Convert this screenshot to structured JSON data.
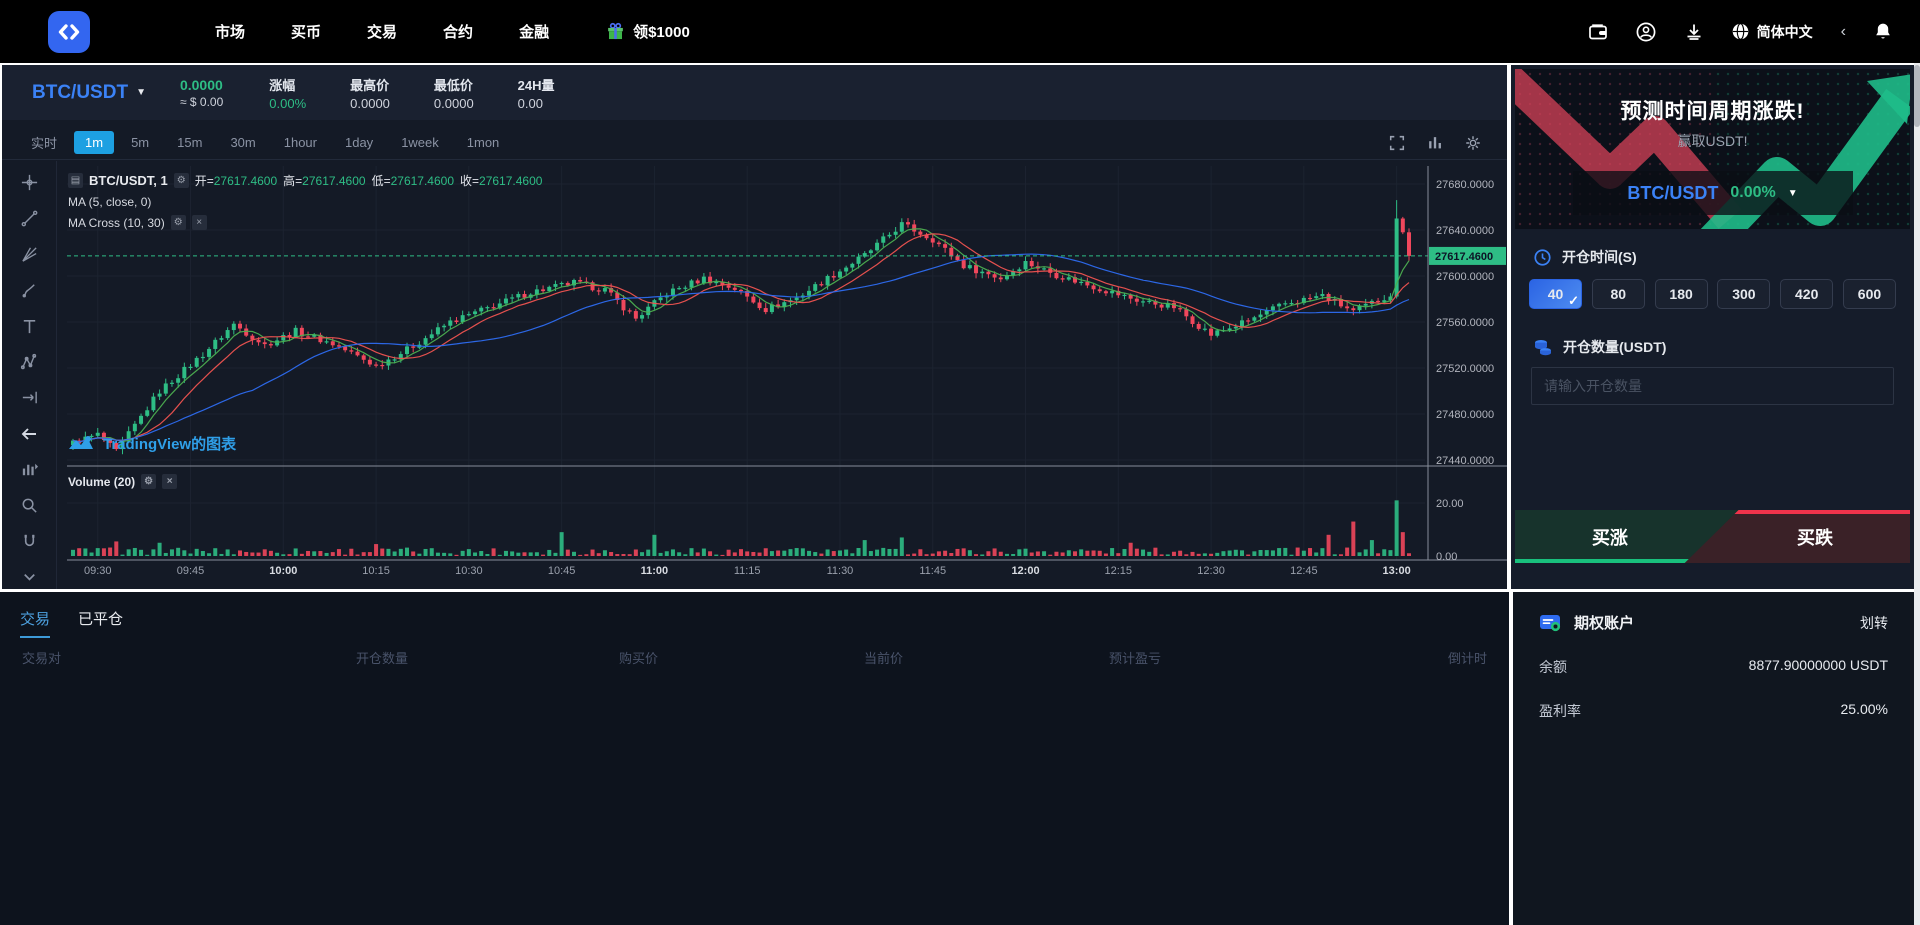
{
  "nav": {
    "links": [
      {
        "label": "市场"
      },
      {
        "label": "买币"
      },
      {
        "label": "交易"
      },
      {
        "label": "合约"
      },
      {
        "label": "金融"
      }
    ],
    "bonus_label": "领$1000",
    "language": "简体中文"
  },
  "chart_header": {
    "pair": "BTC/USDT",
    "price": "0.0000",
    "price_approx": "≈ $ 0.00",
    "stats": [
      {
        "label": "涨幅",
        "value": "0.00%"
      },
      {
        "label": "最高价",
        "value": "0.0000"
      },
      {
        "label": "最低价",
        "value": "0.0000"
      },
      {
        "label": "24H量",
        "value": "0.00"
      }
    ]
  },
  "toolbar": {
    "timeframes": [
      {
        "label": "实时"
      },
      {
        "label": "1m"
      },
      {
        "label": "5m"
      },
      {
        "label": "15m"
      },
      {
        "label": "30m"
      },
      {
        "label": "1hour"
      },
      {
        "label": "1day"
      },
      {
        "label": "1week"
      },
      {
        "label": "1mon"
      }
    ],
    "active_timeframe": "1m"
  },
  "chart": {
    "legend_symbol": "BTC/USDT, 1",
    "ohlc": [
      {
        "label": "开=",
        "value": "27617.4600"
      },
      {
        "label": "高=",
        "value": "27617.4600"
      },
      {
        "label": "低=",
        "value": "27617.4600"
      },
      {
        "label": "收=",
        "value": "27617.4600"
      }
    ],
    "ma_label": "MA (5, close, 0)",
    "ma_cross_label": "MA Cross (10, 30)",
    "volume_label": "Volume (20)",
    "attribution": "TradingView的图表",
    "price_tag": "27617.4600"
  },
  "chart_data": {
    "type": "candlestick",
    "symbol": "BTC/USDT",
    "interval": "1m",
    "start_time": "09:26",
    "last_price": 27617.46,
    "price_ticks": [
      27680,
      27640,
      27600,
      27560,
      27520,
      27480,
      27440
    ],
    "volume_ticks": [
      {
        "label": "20.00",
        "value": 20
      },
      {
        "label": "0.00",
        "value": 0
      }
    ],
    "time_ticks": [
      "09:30",
      "09:45",
      "10:00",
      "10:15",
      "10:30",
      "10:45",
      "11:00",
      "11:15",
      "11:30",
      "11:45",
      "12:00",
      "12:15",
      "12:30",
      "12:45",
      "13:00"
    ],
    "price_anchors": [
      [
        0,
        27455
      ],
      [
        4,
        27462
      ],
      [
        7,
        27447
      ],
      [
        10,
        27470
      ],
      [
        14,
        27500
      ],
      [
        21,
        27532
      ],
      [
        26,
        27558
      ],
      [
        31,
        27540
      ],
      [
        36,
        27552
      ],
      [
        42,
        27541
      ],
      [
        49,
        27522
      ],
      [
        54,
        27536
      ],
      [
        61,
        27560
      ],
      [
        67,
        27572
      ],
      [
        74,
        27586
      ],
      [
        81,
        27594
      ],
      [
        86,
        27588
      ],
      [
        91,
        27563
      ],
      [
        96,
        27585
      ],
      [
        102,
        27598
      ],
      [
        107,
        27589
      ],
      [
        112,
        27571
      ],
      [
        117,
        27581
      ],
      [
        122,
        27598
      ],
      [
        128,
        27618
      ],
      [
        134,
        27645
      ],
      [
        139,
        27632
      ],
      [
        144,
        27609
      ],
      [
        150,
        27598
      ],
      [
        154,
        27612
      ],
      [
        159,
        27601
      ],
      [
        166,
        27589
      ],
      [
        172,
        27579
      ],
      [
        178,
        27573
      ],
      [
        184,
        27549
      ],
      [
        190,
        27561
      ],
      [
        196,
        27576
      ],
      [
        202,
        27583
      ],
      [
        207,
        27569
      ],
      [
        211,
        27579
      ],
      [
        213,
        27584
      ],
      [
        214,
        27650
      ],
      [
        215,
        27638
      ],
      [
        216,
        27617.46
      ]
    ],
    "volume_spikes": {
      "7": 5.5,
      "14": 5,
      "49": 4.5,
      "79": 9,
      "94": 8,
      "128": 6,
      "134": 7,
      "171": 5,
      "203": 8,
      "207": 13,
      "210": 6,
      "214": 21,
      "215": 9
    },
    "high_overrides": {
      "214": 27666
    },
    "up_color": "#2ebd85",
    "down_color": "#f0475c",
    "ma_colors": {
      "ma5": "#4caf50",
      "ma10": "#ef5350",
      "ma30": "#2d6bf0"
    }
  },
  "trade_panel": {
    "banner_title": "预测时间周期涨跌!",
    "banner_subtitle": "赢取USDT!",
    "pair": "BTC/USDT",
    "change": "0.00%",
    "open_time_label": "开仓时间(S)",
    "durations": [
      {
        "label": "40"
      },
      {
        "label": "80"
      },
      {
        "label": "180"
      },
      {
        "label": "300"
      },
      {
        "label": "420"
      },
      {
        "label": "600"
      }
    ],
    "active_duration": "40",
    "amount_label": "开仓数量(USDT)",
    "amount_placeholder": "请输入开仓数量",
    "buy_up": "买涨",
    "buy_down": "买跌"
  },
  "positions_panel": {
    "tabs": [
      {
        "label": "交易"
      },
      {
        "label": "已平仓"
      }
    ],
    "active_tab": "交易",
    "columns": [
      "交易对",
      "开仓数量",
      "购买价",
      "当前价",
      "预计盈亏",
      "倒计时"
    ]
  },
  "account_panel": {
    "title": "期权账户",
    "transfer_label": "划转",
    "rows": [
      {
        "label": "余额",
        "value": "8877.90000000 USDT"
      },
      {
        "label": "盈利率",
        "value": "25.00%"
      }
    ]
  },
  "colors": {
    "accent_blue": "#3b82f6",
    "up_green": "#2ebd85",
    "down_red": "#f0475c",
    "active_timeframe": "#1da0e2"
  }
}
